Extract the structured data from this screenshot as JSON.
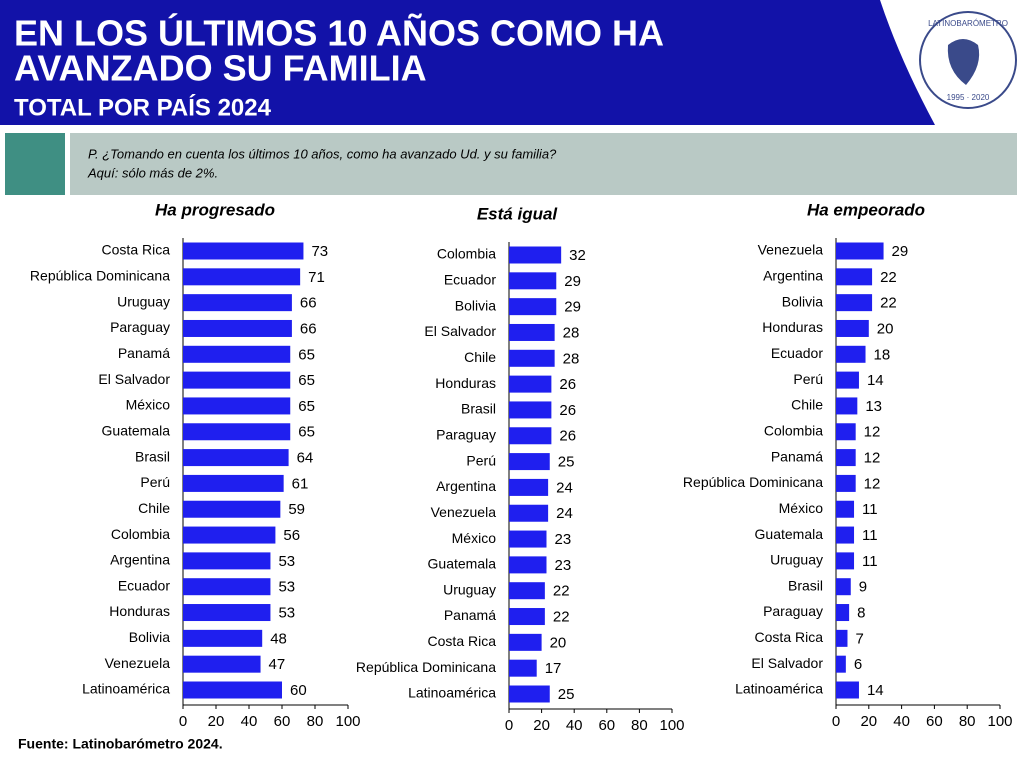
{
  "header": {
    "title_line1": "EN LOS ÚLTIMOS 10 AÑOS COMO HA",
    "title_line2": "AVANZADO SU FAMILIA",
    "subtitle": "TOTAL POR PAÍS 2024"
  },
  "logo": {
    "name": "LATINOBARÓMETRO",
    "years": "1995 · 2020"
  },
  "question": {
    "line1": "P. ¿Tomando en cuenta los últimos 10 años, como ha avanzado Ud. y su familia?",
    "line2": "Aquí: sólo más de 2%."
  },
  "chart_data": [
    {
      "type": "bar",
      "orientation": "horizontal",
      "title": "Ha progresado",
      "color": "#1f1fef",
      "categories": [
        "Costa Rica",
        "República Dominicana",
        "Uruguay",
        "Paraguay",
        "Panamá",
        "El Salvador",
        "México",
        "Guatemala",
        "Brasil",
        "Perú",
        "Chile",
        "Colombia",
        "Argentina",
        "Ecuador",
        "Honduras",
        "Bolivia",
        "Venezuela",
        "Latinoamérica"
      ],
      "values": [
        73,
        71,
        66,
        66,
        65,
        65,
        65,
        65,
        64,
        61,
        59,
        56,
        53,
        53,
        53,
        48,
        47,
        60
      ],
      "xlim": [
        0,
        100
      ],
      "xticks": [
        0,
        20,
        40,
        60,
        80,
        100
      ]
    },
    {
      "type": "bar",
      "orientation": "horizontal",
      "title": "Está igual",
      "color": "#1f1fef",
      "categories": [
        "Colombia",
        "Ecuador",
        "Bolivia",
        "El Salvador",
        "Chile",
        "Honduras",
        "Brasil",
        "Paraguay",
        "Perú",
        "Argentina",
        "Venezuela",
        "México",
        "Guatemala",
        "Uruguay",
        "Panamá",
        "Costa Rica",
        "República Dominicana",
        "Latinoamérica"
      ],
      "values": [
        32,
        29,
        29,
        28,
        28,
        26,
        26,
        26,
        25,
        24,
        24,
        23,
        23,
        22,
        22,
        20,
        17,
        25
      ],
      "xlim": [
        0,
        100
      ],
      "xticks": [
        0,
        20,
        40,
        60,
        80,
        100
      ]
    },
    {
      "type": "bar",
      "orientation": "horizontal",
      "title": "Ha empeorado",
      "color": "#1f1fef",
      "categories": [
        "Venezuela",
        "Argentina",
        "Bolivia",
        "Honduras",
        "Ecuador",
        "Perú",
        "Chile",
        "Colombia",
        "Panamá",
        "República Dominicana",
        "México",
        "Guatemala",
        "Uruguay",
        "Brasil",
        "Paraguay",
        "Costa Rica",
        "El Salvador",
        "Latinoamérica"
      ],
      "values": [
        29,
        22,
        22,
        20,
        18,
        14,
        13,
        12,
        12,
        12,
        11,
        11,
        11,
        9,
        8,
        7,
        6,
        14
      ],
      "xlim": [
        0,
        100
      ],
      "xticks": [
        0,
        20,
        40,
        60,
        80,
        100
      ]
    }
  ],
  "source": "Fuente: Latinobarómetro 2024."
}
